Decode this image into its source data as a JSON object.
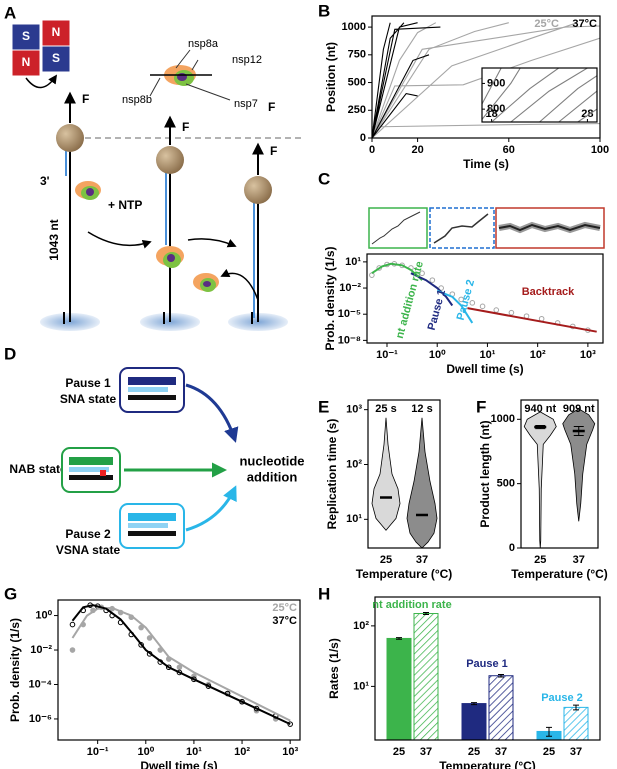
{
  "panel_labels": [
    "A",
    "B",
    "C",
    "D",
    "E",
    "F",
    "G",
    "H"
  ],
  "diagram_a": {
    "magnet_labels": [
      "S",
      "N",
      "N",
      "S"
    ],
    "force_labels": [
      "F",
      "F",
      "F",
      "F"
    ],
    "proteins": [
      "nsp8a",
      "nsp12",
      "nsp8b",
      "nsp7"
    ],
    "end_label": "3'",
    "reagent": "+ NTP",
    "length": "1043 nt"
  },
  "diagram_d": {
    "pause1": [
      "Pause 1",
      "SNA state"
    ],
    "nab": "NAB state",
    "pause2": [
      "Pause 2",
      "VSNA state"
    ],
    "outcome": [
      "nucleotide",
      "addition"
    ]
  },
  "chart_data": [
    {
      "type": "line",
      "xlabel": "Time (s)",
      "ylabel": "Position (nt)",
      "xlim": [
        0,
        100
      ],
      "ylim": [
        0,
        1100
      ],
      "xticks": [
        0,
        20,
        60,
        100
      ],
      "yticks": [
        0,
        250,
        500,
        750,
        1000
      ],
      "legend": "upper right",
      "series": [
        {
          "name": "25°C",
          "color": "#a6a6a6",
          "x": [
            0,
            12,
            20,
            28,
            null,
            0,
            25,
            45,
            60,
            null,
            0,
            35,
            70,
            90,
            null,
            0,
            60,
            100,
            null,
            0,
            10,
            40,
            70,
            100,
            null,
            0,
            22,
            85,
            100
          ],
          "values": [
            0,
            700,
            950,
            1040,
            null,
            0,
            800,
            960,
            1040,
            null,
            0,
            650,
            900,
            1040,
            null,
            100,
            120,
            130,
            null,
            0,
            470,
            480,
            700,
            900,
            null,
            0,
            800,
            1000,
            1010
          ]
        },
        {
          "name": "37°C",
          "color": "#000000",
          "x": [
            0,
            5,
            8,
            null,
            0,
            8,
            14,
            null,
            0,
            12,
            20,
            null,
            0,
            15,
            20,
            null,
            0,
            18,
            25,
            null,
            0,
            10,
            30
          ],
          "values": [
            0,
            800,
            1040,
            null,
            0,
            900,
            1040,
            null,
            0,
            1000,
            1040,
            null,
            0,
            400,
            380,
            null,
            0,
            700,
            750,
            null,
            0,
            980,
            1000
          ]
        }
      ]
    },
    {
      "type": "line",
      "xlim": [
        17,
        29
      ],
      "ylim": [
        750,
        960
      ],
      "xticks": [
        18,
        28
      ],
      "yticks": [
        800,
        900
      ],
      "series": [
        {
          "color": "#808080",
          "x": [
            17,
            20,
            21,
            null,
            18,
            22,
            25,
            null,
            20,
            24,
            28,
            null,
            23,
            27,
            29,
            null,
            25,
            29,
            null,
            17,
            19,
            null,
            27,
            29
          ],
          "values": [
            760,
            900,
            960,
            null,
            750,
            880,
            960,
            null,
            750,
            870,
            960,
            null,
            750,
            880,
            930,
            null,
            750,
            870,
            null,
            820,
            960,
            null,
            750,
            800
          ]
        }
      ]
    },
    {
      "type": "scatter",
      "log_x": true,
      "log_y": true,
      "xlabel": "Dwell time (s)",
      "ylabel": "Prob. density (1/s)",
      "xlim": [
        0.04,
        2000
      ],
      "ylim": [
        5e-09,
        80
      ],
      "xticks": [
        {
          "value": 0.1,
          "label": "10⁻¹"
        },
        {
          "value": 1,
          "label": "10⁰"
        },
        {
          "value": 10,
          "label": "10¹"
        },
        {
          "value": 100,
          "label": "10²"
        },
        {
          "value": 1000,
          "label": "10³"
        }
      ],
      "yticks": [
        {
          "value": 10,
          "label": "10¹"
        },
        {
          "value": 0.01,
          "label": "10⁻²"
        },
        {
          "value": 1e-05,
          "label": "10⁻⁵"
        },
        {
          "value": 1e-08,
          "label": "10⁻⁸"
        }
      ],
      "legend": "inline",
      "series": [
        {
          "color": "#a6a6a6",
          "marker": "open",
          "x": [
            0.05,
            0.07,
            0.1,
            0.14,
            0.2,
            0.3,
            0.5,
            0.8,
            1.2,
            2,
            3,
            5,
            8,
            15,
            30,
            60,
            120,
            250,
            500,
            1000
          ],
          "values": [
            0.3,
            2,
            5,
            6,
            4,
            2,
            0.5,
            0.08,
            0.01,
            0.002,
            0.0005,
            0.0002,
            8e-05,
            3e-05,
            1.5e-05,
            6e-06,
            3e-06,
            1e-06,
            4e-07,
            1.5e-07
          ]
        },
        {
          "name": "nt addition rate",
          "color": "#3cb44b",
          "line": true,
          "x": [
            0.05,
            0.08,
            0.12,
            0.2,
            0.3,
            0.5
          ],
          "values": [
            0.5,
            3,
            6,
            4,
            1.2,
            0.08
          ]
        },
        {
          "name": "Pause 1",
          "color": "#1f2a80",
          "line": true,
          "x": [
            0.3,
            0.6,
            1,
            1.5,
            2
          ],
          "values": [
            0.5,
            0.08,
            0.01,
            0.001,
            0.0001
          ]
        },
        {
          "name": "Pause 2",
          "color": "#29b6e8",
          "line": true,
          "x": [
            1,
            2,
            3,
            5
          ],
          "values": [
            0.005,
            0.001,
            0.0001,
            1e-06
          ]
        },
        {
          "name": "Backtrack",
          "color": "#a51c1c",
          "line": true,
          "x": [
            4,
            1500
          ],
          "values": [
            5e-05,
            1e-07
          ]
        }
      ]
    },
    {
      "type": "violin",
      "log_y": true,
      "xlabel": "Temperature (°C)",
      "ylabel": "Replication time (s)",
      "ylim": [
        3,
        1500
      ],
      "yticks": [
        {
          "value": 10,
          "label": "10¹"
        },
        {
          "value": 100,
          "label": "10²"
        },
        {
          "value": 1000,
          "label": "10³"
        }
      ],
      "categories": [
        "25",
        "37"
      ],
      "colors": [
        "#d9d9d9",
        "#8c8c8c"
      ],
      "values": [
        25,
        12
      ],
      "value_labels": [
        "25 s",
        "12 s"
      ]
    },
    {
      "type": "violin",
      "xlabel": "Temperature (°C)",
      "ylabel": "Product length (nt)",
      "ylim": [
        0,
        1150
      ],
      "yticks": [
        0,
        500,
        1000
      ],
      "categories": [
        "25",
        "37"
      ],
      "colors": [
        "#d9d9d9",
        "#8c8c8c"
      ],
      "values": [
        940,
        909
      ],
      "errors": [
        12,
        35
      ],
      "value_labels": [
        "940 nt",
        "909 nt"
      ]
    },
    {
      "type": "scatter",
      "log_x": true,
      "log_y": true,
      "xlabel": "Dwell time (s)",
      "ylabel": "Prob. density (1/s)",
      "xlim": [
        0.015,
        1600
      ],
      "ylim": [
        6e-08,
        8
      ],
      "xticks": [
        {
          "value": 0.1,
          "label": "10⁻¹"
        },
        {
          "value": 1,
          "label": "10⁰"
        },
        {
          "value": 10,
          "label": "10¹"
        },
        {
          "value": 100,
          "label": "10²"
        },
        {
          "value": 1000,
          "label": "10³"
        }
      ],
      "yticks": [
        {
          "value": 1,
          "label": "10⁰"
        },
        {
          "value": 0.01,
          "label": "10⁻²"
        },
        {
          "value": 0.0001,
          "label": "10⁻⁴"
        },
        {
          "value": 1e-06,
          "label": "10⁻⁶"
        }
      ],
      "legend": "upper right",
      "series": [
        {
          "name": "25°C",
          "color": "#a6a6a6",
          "marker": "filled",
          "x": [
            0.03,
            0.05,
            0.08,
            0.12,
            0.2,
            0.3,
            0.5,
            0.8,
            1.2,
            2,
            3,
            5,
            10,
            20,
            50,
            100,
            200,
            500
          ],
          "values": [
            0.01,
            0.3,
            2,
            3,
            2.5,
            1.5,
            0.8,
            0.2,
            0.05,
            0.01,
            0.003,
            0.001,
            0.0003,
            0.0001,
            3e-05,
            1e-05,
            3e-06,
            1e-06
          ]
        },
        {
          "name": "37°C",
          "color": "#000000",
          "marker": "open",
          "x": [
            0.03,
            0.05,
            0.07,
            0.1,
            0.15,
            0.2,
            0.3,
            0.5,
            0.8,
            1.2,
            2,
            3,
            5,
            10,
            20,
            50,
            100,
            200,
            500,
            1000
          ],
          "values": [
            0.3,
            2,
            4,
            3.5,
            2,
            1,
            0.4,
            0.08,
            0.02,
            0.006,
            0.002,
            0.001,
            0.0005,
            0.0002,
            8e-05,
            3e-05,
            1e-05,
            4e-06,
            1.5e-06,
            5e-07
          ]
        },
        {
          "color": "#a6a6a6",
          "line": true,
          "x": [
            0.03,
            0.06,
            0.1,
            0.2,
            0.5,
            1,
            3,
            10,
            100,
            1000
          ],
          "values": [
            0.05,
            1,
            2.5,
            2.8,
            1,
            0.2,
            0.004,
            0.0005,
            2e-05,
            8e-07
          ]
        },
        {
          "color": "#000000",
          "line": true,
          "x": [
            0.03,
            0.05,
            0.08,
            0.15,
            0.3,
            0.6,
            1,
            3,
            10,
            100,
            1000
          ],
          "values": [
            0.5,
            3,
            4,
            2.5,
            0.6,
            0.06,
            0.01,
            0.001,
            0.0002,
            1e-05,
            5e-07
          ]
        }
      ]
    },
    {
      "type": "bar",
      "log_y": true,
      "xlabel": "Temperature (°C)",
      "ylabel": "Rates (1/s)",
      "ylim": [
        1.3,
        300
      ],
      "yticks": [
        {
          "value": 10,
          "label": "10¹"
        },
        {
          "value": 100,
          "label": "10²"
        }
      ],
      "categories": [
        "25",
        "37"
      ],
      "hatch": [
        false,
        true
      ],
      "legend": "inline",
      "series": [
        {
          "name": "nt addition rate",
          "color": "#3cb44b",
          "values": [
            62,
            160
          ],
          "errors": [
            2,
            6
          ]
        },
        {
          "name": "Pause 1",
          "color": "#1f2a80",
          "values": [
            5.2,
            15
          ],
          "errors": [
            0.2,
            0.7
          ]
        },
        {
          "name": "Pause 2",
          "color": "#29b6e8",
          "values": [
            1.8,
            4.5
          ],
          "errors": [
            0.3,
            0.4
          ]
        }
      ]
    }
  ]
}
